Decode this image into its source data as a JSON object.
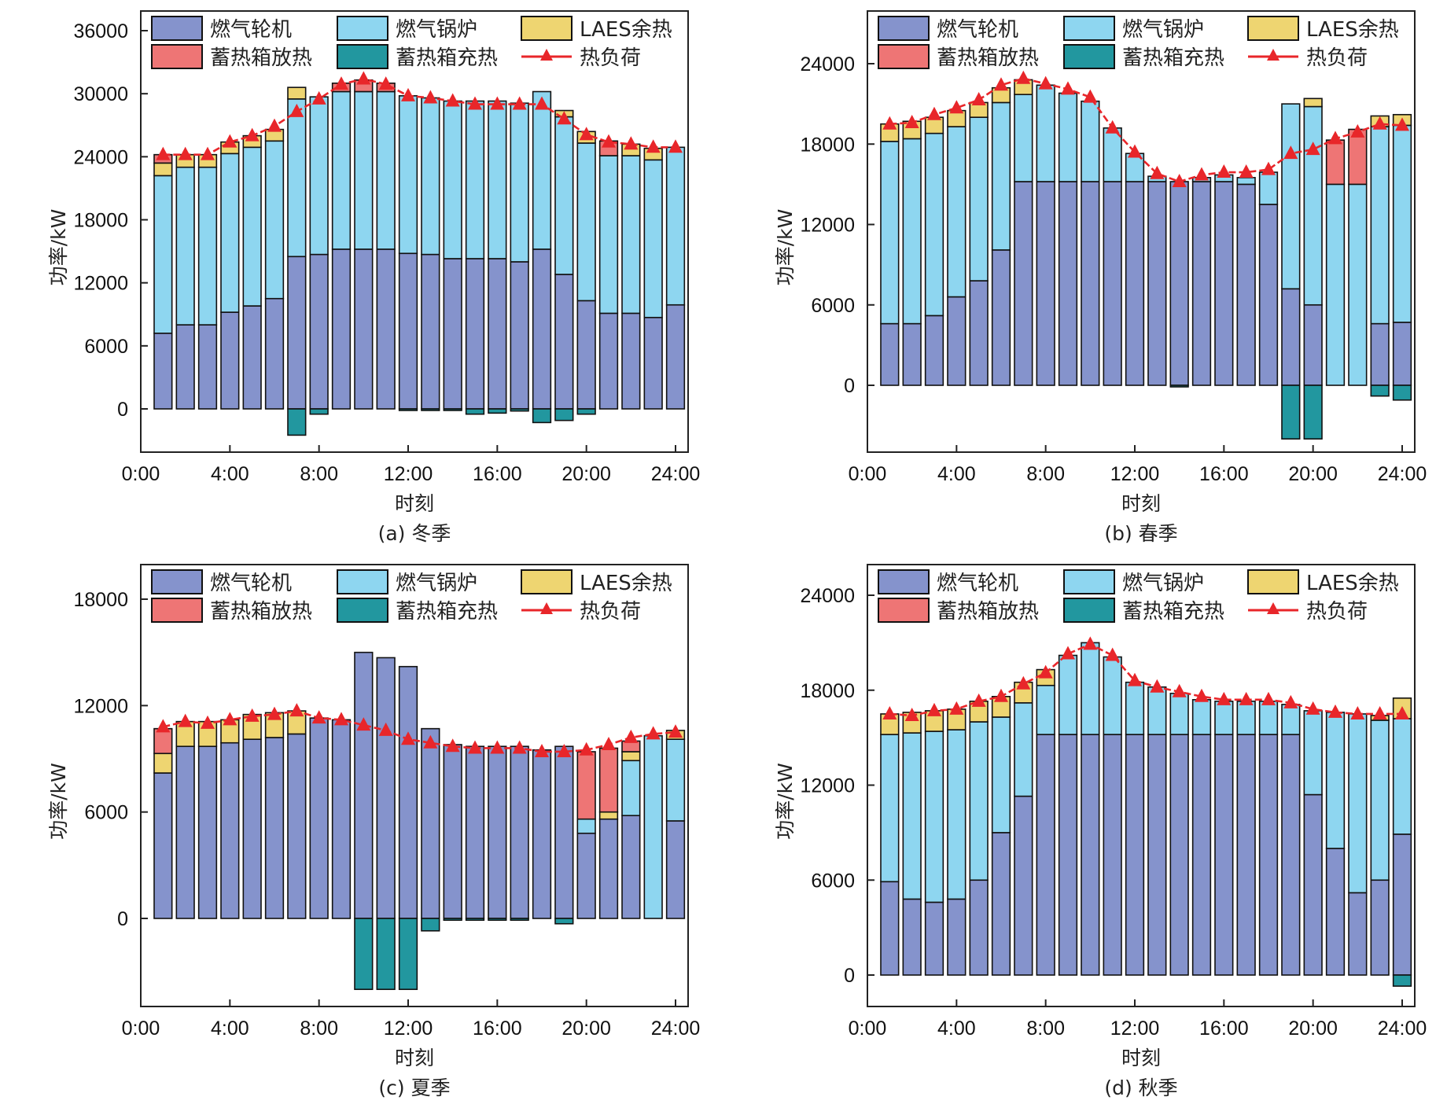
{
  "figure": {
    "legend": {
      "gt": "燃气轮机",
      "gb": "燃气锅炉",
      "laes": "LAES余热",
      "tes_dis": "蓄热箱放热",
      "tes_chg": "蓄热箱充热",
      "load": "热负荷"
    },
    "colors": {
      "gt": "#8593CC",
      "gb": "#8ED6F0",
      "laes": "#EED571",
      "tes_dis": "#EE7575",
      "tes_chg": "#22979F",
      "load": "#E8262A"
    }
  },
  "chart_data": [
    {
      "id": "a",
      "type": "bar",
      "stacked": true,
      "title": "(a) 冬季",
      "xlabel": "时刻",
      "ylabel": "功率/kW",
      "xticks": [
        "0:00",
        "4:00",
        "8:00",
        "12:00",
        "16:00",
        "20:00",
        "24:00"
      ],
      "x": [
        1,
        2,
        3,
        4,
        5,
        6,
        7,
        8,
        9,
        10,
        11,
        12,
        13,
        14,
        15,
        16,
        17,
        18,
        19,
        20,
        21,
        22,
        23,
        24
      ],
      "yticks": [
        0,
        6000,
        12000,
        18000,
        24000,
        30000,
        36000
      ],
      "ylim": [
        -4000,
        37500
      ],
      "xlim": [
        0,
        25
      ],
      "legend_position": "top",
      "series": [
        {
          "key": "gt",
          "name": "燃气轮机",
          "values": [
            7200,
            8000,
            8000,
            9200,
            9800,
            10500,
            14500,
            14700,
            15200,
            15200,
            15200,
            14800,
            14700,
            14300,
            14300,
            14300,
            14000,
            15200,
            12800,
            10300,
            9100,
            9100,
            8700,
            9900
          ]
        },
        {
          "key": "gb",
          "name": "燃气锅炉",
          "values": [
            15000,
            15000,
            15000,
            15100,
            15100,
            15000,
            15000,
            15000,
            15000,
            15000,
            15000,
            15000,
            14900,
            15000,
            15000,
            15000,
            15100,
            15000,
            15000,
            15000,
            15000,
            15000,
            15000,
            15000
          ]
        },
        {
          "key": "laes",
          "name": "LAES余热",
          "values": [
            1200,
            1200,
            1200,
            1100,
            1100,
            1100,
            1100,
            0,
            0,
            0,
            0,
            0,
            0,
            0,
            0,
            0,
            0,
            0,
            600,
            1100,
            0,
            1100,
            1100,
            0
          ]
        },
        {
          "key": "tes_dis",
          "name": "蓄热箱放热",
          "values": [
            800,
            0,
            0,
            0,
            0,
            0,
            0,
            0,
            800,
            1100,
            800,
            0,
            0,
            0,
            0,
            0,
            0,
            0,
            0,
            0,
            1400,
            0,
            0,
            0
          ]
        },
        {
          "key": "tes_chg",
          "name": "蓄热箱充热",
          "values": [
            0,
            0,
            0,
            0,
            0,
            0,
            -2500,
            -500,
            0,
            0,
            0,
            -100,
            -100,
            -100,
            -500,
            -400,
            -200,
            -1300,
            -1100,
            -500,
            0,
            0,
            0,
            0
          ]
        }
      ],
      "line": {
        "key": "load",
        "name": "热负荷",
        "values": [
          24200,
          24200,
          24200,
          25400,
          26000,
          26900,
          28300,
          29500,
          30900,
          31400,
          30900,
          29800,
          29600,
          29300,
          29000,
          29000,
          29000,
          29000,
          27600,
          26100,
          25400,
          25200,
          24900,
          24900
        ]
      }
    },
    {
      "id": "b",
      "type": "bar",
      "stacked": true,
      "title": "(b) 春季",
      "xlabel": "时刻",
      "ylabel": "功率/kW",
      "xticks": [
        "0:00",
        "4:00",
        "8:00",
        "12:00",
        "16:00",
        "20:00",
        "24:00"
      ],
      "x": [
        1,
        2,
        3,
        4,
        5,
        6,
        7,
        8,
        9,
        10,
        11,
        12,
        13,
        14,
        15,
        16,
        17,
        18,
        19,
        20,
        21,
        22,
        23,
        24
      ],
      "yticks": [
        0,
        6000,
        12000,
        18000,
        24000
      ],
      "ylim": [
        -4800,
        28000
      ],
      "xlim": [
        0,
        25
      ],
      "legend_position": "top",
      "series": [
        {
          "key": "gt",
          "name": "燃气轮机",
          "values": [
            4600,
            4600,
            5200,
            6600,
            7800,
            10100,
            15200,
            15200,
            15200,
            15200,
            15200,
            15200,
            15200,
            15200,
            15200,
            15200,
            15000,
            13500,
            7200,
            6000,
            0,
            0,
            4600,
            4700
          ]
        },
        {
          "key": "gb",
          "name": "燃气锅炉",
          "values": [
            13600,
            13800,
            13600,
            12700,
            12200,
            11000,
            6500,
            7200,
            6600,
            6000,
            4000,
            2100,
            400,
            0,
            300,
            500,
            500,
            2400,
            13800,
            14800,
            15000,
            15000,
            14700,
            14700
          ]
        },
        {
          "key": "laes",
          "name": "LAES余热",
          "values": [
            1300,
            1300,
            1200,
            1200,
            1100,
            1100,
            1100,
            0,
            0,
            0,
            0,
            0,
            0,
            0,
            0,
            0,
            0,
            0,
            0,
            600,
            0,
            0,
            800,
            800
          ]
        },
        {
          "key": "tes_dis",
          "name": "蓄热箱放热",
          "values": [
            0,
            0,
            0,
            0,
            0,
            0,
            0,
            0,
            0,
            0,
            0,
            0,
            0,
            0,
            0,
            0,
            0,
            0,
            0,
            0,
            3300,
            4100,
            0,
            0
          ]
        },
        {
          "key": "tes_chg",
          "name": "蓄热箱充热",
          "values": [
            0,
            0,
            0,
            0,
            0,
            0,
            0,
            0,
            0,
            0,
            0,
            0,
            0,
            -100,
            0,
            0,
            0,
            0,
            -4000,
            -4000,
            0,
            0,
            -800,
            -1100
          ]
        }
      ],
      "line": {
        "key": "load",
        "name": "热负荷",
        "values": [
          19500,
          19600,
          20200,
          20700,
          21300,
          22400,
          22900,
          22500,
          22100,
          21500,
          19200,
          17400,
          15800,
          15200,
          15700,
          15900,
          15900,
          16100,
          17300,
          17600,
          18400,
          18900,
          19500,
          19400
        ]
      }
    },
    {
      "id": "c",
      "type": "bar",
      "stacked": true,
      "title": "(c) 夏季",
      "xlabel": "时刻",
      "ylabel": "功率/kW",
      "xticks": [
        "0:00",
        "4:00",
        "8:00",
        "12:00",
        "16:00",
        "20:00",
        "24:00"
      ],
      "x": [
        1,
        2,
        3,
        4,
        5,
        6,
        7,
        8,
        9,
        10,
        11,
        12,
        13,
        14,
        15,
        16,
        17,
        18,
        19,
        20,
        21,
        22,
        23,
        24
      ],
      "yticks": [
        0,
        6000,
        12000,
        18000
      ],
      "ylim": [
        -5000,
        20000
      ],
      "xlim": [
        0,
        25
      ],
      "legend_position": "top",
      "series": [
        {
          "key": "gt",
          "name": "燃气轮机",
          "values": [
            8200,
            9700,
            9700,
            9900,
            10100,
            10200,
            10400,
            11300,
            11200,
            15000,
            14700,
            14200,
            10700,
            9800,
            9700,
            9700,
            9700,
            9500,
            9700,
            4800,
            5600,
            5800,
            0,
            5500
          ]
        },
        {
          "key": "gb",
          "name": "燃气锅炉",
          "values": [
            0,
            0,
            0,
            0,
            0,
            0,
            0,
            0,
            0,
            0,
            0,
            0,
            0,
            0,
            0,
            0,
            0,
            0,
            0,
            800,
            0,
            3100,
            10300,
            4600
          ]
        },
        {
          "key": "laes",
          "name": "LAES余热",
          "values": [
            1100,
            1400,
            1400,
            1300,
            1400,
            1400,
            1300,
            0,
            0,
            0,
            0,
            0,
            0,
            0,
            0,
            0,
            0,
            0,
            0,
            0,
            400,
            500,
            0,
            500
          ]
        },
        {
          "key": "tes_dis",
          "name": "蓄热箱放热",
          "values": [
            1400,
            0,
            0,
            0,
            0,
            0,
            0,
            0,
            0,
            0,
            0,
            0,
            0,
            0,
            0,
            0,
            0,
            0,
            0,
            3800,
            3600,
            600,
            0,
            0
          ]
        },
        {
          "key": "tes_chg",
          "name": "蓄热箱充热",
          "values": [
            0,
            0,
            0,
            0,
            0,
            0,
            0,
            0,
            0,
            -4000,
            -4000,
            -4000,
            -700,
            -100,
            -100,
            -100,
            -100,
            0,
            -300,
            0,
            0,
            0,
            0,
            0
          ]
        }
      ],
      "line": {
        "key": "load",
        "name": "热负荷",
        "values": [
          10800,
          11100,
          11000,
          11200,
          11400,
          11500,
          11700,
          11300,
          11200,
          10900,
          10600,
          10100,
          9900,
          9700,
          9600,
          9600,
          9600,
          9400,
          9400,
          9500,
          9800,
          10200,
          10400,
          10500
        ]
      }
    },
    {
      "id": "d",
      "type": "bar",
      "stacked": true,
      "title": "(d) 秋季",
      "xlabel": "时刻",
      "ylabel": "功率/kW",
      "xticks": [
        "0:00",
        "4:00",
        "8:00",
        "12:00",
        "16:00",
        "20:00",
        "24:00"
      ],
      "x": [
        1,
        2,
        3,
        4,
        5,
        6,
        7,
        8,
        9,
        10,
        11,
        12,
        13,
        14,
        15,
        16,
        17,
        18,
        19,
        20,
        21,
        22,
        23,
        24
      ],
      "yticks": [
        0,
        6000,
        12000,
        18000,
        24000
      ],
      "ylim": [
        -2000,
        26000
      ],
      "xlim": [
        0,
        25
      ],
      "legend_position": "top",
      "series": [
        {
          "key": "gt",
          "name": "燃气轮机",
          "values": [
            5900,
            4800,
            4600,
            4800,
            6000,
            9000,
            11300,
            15200,
            15200,
            15200,
            15200,
            15200,
            15200,
            15200,
            15200,
            15200,
            15200,
            15200,
            15200,
            11400,
            8000,
            5200,
            6000,
            8900
          ]
        },
        {
          "key": "gb",
          "name": "燃气锅炉",
          "values": [
            9300,
            10500,
            10800,
            10700,
            10000,
            7300,
            5900,
            3100,
            5000,
            5800,
            4900,
            3300,
            3000,
            2600,
            2200,
            2100,
            2100,
            2100,
            1900,
            5300,
            8600,
            11300,
            10100,
            7300
          ]
        },
        {
          "key": "laes",
          "name": "LAES余热",
          "values": [
            1300,
            1300,
            1300,
            1300,
            1300,
            1300,
            1300,
            1000,
            0,
            0,
            0,
            0,
            0,
            0,
            0,
            0,
            0,
            0,
            0,
            0,
            0,
            0,
            300,
            1300
          ]
        },
        {
          "key": "tes_dis",
          "name": "蓄热箱放热",
          "values": [
            0,
            0,
            0,
            0,
            0,
            0,
            0,
            0,
            0,
            0,
            0,
            0,
            0,
            0,
            0,
            0,
            0,
            0,
            0,
            0,
            0,
            0,
            0,
            0
          ]
        },
        {
          "key": "tes_chg",
          "name": "蓄热箱充热",
          "values": [
            0,
            0,
            0,
            0,
            0,
            0,
            0,
            0,
            0,
            0,
            0,
            0,
            0,
            0,
            0,
            0,
            0,
            0,
            0,
            0,
            0,
            0,
            0,
            -700
          ]
        }
      ],
      "line": {
        "key": "load",
        "name": "热负荷",
        "values": [
          16500,
          16400,
          16700,
          16800,
          17300,
          17600,
          18400,
          19100,
          20300,
          20900,
          20200,
          18600,
          18200,
          17900,
          17600,
          17400,
          17400,
          17400,
          17200,
          16800,
          16600,
          16500,
          16500,
          16500
        ]
      }
    }
  ]
}
